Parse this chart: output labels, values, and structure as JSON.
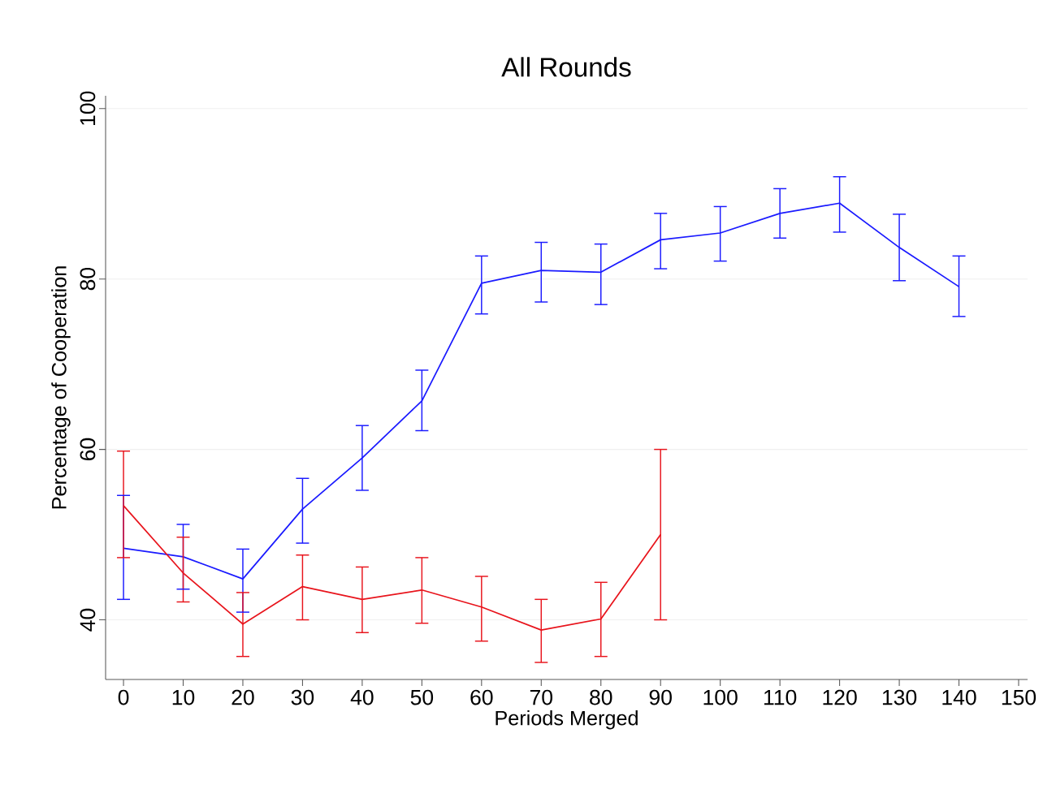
{
  "chart_data": {
    "type": "line",
    "title": "All Rounds",
    "xlabel": "Periods Merged",
    "ylabel": "Percentage of Cooperation",
    "x": [
      0,
      10,
      20,
      30,
      40,
      50,
      60,
      70,
      80,
      90,
      100,
      110,
      120,
      130,
      140
    ],
    "series": [
      {
        "color": "#1a1aff",
        "values": [
          48.4,
          47.4,
          44.8,
          53.0,
          59.0,
          65.7,
          79.5,
          81.0,
          80.8,
          84.6,
          85.4,
          87.7,
          88.9,
          83.7,
          79.1
        ],
        "errors": [
          [
            42.4,
            54.6
          ],
          [
            43.6,
            51.2
          ],
          [
            40.9,
            48.3
          ],
          [
            49.0,
            56.6
          ],
          [
            55.2,
            62.8
          ],
          [
            62.2,
            69.3
          ],
          [
            75.9,
            82.7
          ],
          [
            77.3,
            84.3
          ],
          [
            77.0,
            84.1
          ],
          [
            81.2,
            87.7
          ],
          [
            82.1,
            88.5
          ],
          [
            84.8,
            90.6
          ],
          [
            85.5,
            92.0
          ],
          [
            79.8,
            87.6
          ],
          [
            75.6,
            82.7
          ]
        ]
      },
      {
        "color": "#e8141c",
        "x": [
          0,
          10,
          20,
          30,
          40,
          50,
          60,
          70,
          80,
          90
        ],
        "values": [
          53.4,
          45.5,
          39.5,
          43.9,
          42.4,
          43.5,
          41.5,
          38.8,
          40.1,
          50.0
        ],
        "errors": [
          [
            47.3,
            59.8
          ],
          [
            42.1,
            49.7
          ],
          [
            35.7,
            43.2
          ],
          [
            40.0,
            47.6
          ],
          [
            38.5,
            46.2
          ],
          [
            39.6,
            47.3
          ],
          [
            37.5,
            45.1
          ],
          [
            35.0,
            42.4
          ],
          [
            35.7,
            44.4
          ],
          [
            40.0,
            60.0
          ]
        ]
      }
    ],
    "xlim": [
      -3,
      151.5
    ],
    "ylim": [
      33,
      101.5
    ],
    "xticks": [
      0,
      10,
      20,
      30,
      40,
      50,
      60,
      70,
      80,
      90,
      100,
      110,
      120,
      130,
      140,
      150
    ],
    "yticks": [
      40,
      60,
      80,
      100
    ],
    "grid": "y",
    "marker": "none",
    "line_style": "solid"
  }
}
